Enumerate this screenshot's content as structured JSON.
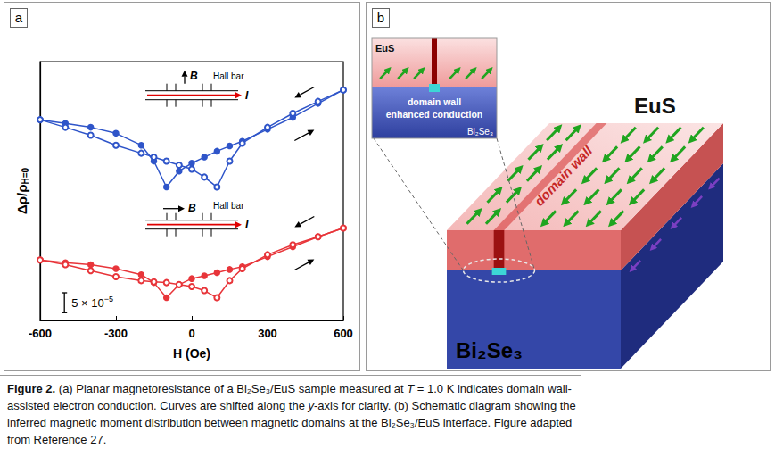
{
  "chart_data": {
    "type": "line",
    "panel_label": "a",
    "x_label": "H (Oe)",
    "y_label": {
      "main": "Δρ/ρ",
      "subscript": "H=0"
    },
    "x": [
      -600,
      -500,
      -400,
      -300,
      -200,
      -150,
      -100,
      -50,
      0,
      50,
      100,
      150,
      200,
      300,
      400,
      500,
      600
    ],
    "series": [
      {
        "color": "#2f55c9",
        "marker": "circle",
        "values": [
          0.000504,
          0.000495,
          0.000485,
          0.00047,
          0.00044,
          0.0004,
          0.000335,
          0.000375,
          0.000395,
          0.00041,
          0.000425,
          0.000438,
          0.00045,
          0.00048,
          0.00051,
          0.000545,
          0.000579
        ]
      },
      {
        "color": "#2f55c9",
        "marker": "emptyCircle",
        "values": [
          0.000504,
          0.000485,
          0.000465,
          0.00044,
          0.00042,
          0.00041,
          0.0004,
          0.00039,
          0.00038,
          0.00036,
          0.000335,
          0.0004,
          0.000445,
          0.000485,
          0.00052,
          0.00055,
          0.000579
        ]
      },
      {
        "color": "#e8353a",
        "marker": "circle",
        "values": [
          0.000152,
          0.000145,
          0.00014,
          0.00013,
          0.000115,
          9.5e-05,
          5.7e-05,
          9e-05,
          0.000105,
          0.000112,
          0.00012,
          0.000128,
          0.000135,
          0.00016,
          0.000185,
          0.00021,
          0.000232
        ]
      },
      {
        "color": "#e8353a",
        "marker": "emptyCircle",
        "values": [
          0.000152,
          0.00014,
          0.000125,
          0.00011,
          0.0001,
          9.7e-05,
          9.5e-05,
          9e-05,
          8.5e-05,
          7.5e-05,
          5.7e-05,
          0.0001,
          0.00013,
          0.000165,
          0.00019,
          0.00021,
          0.000232
        ]
      }
    ],
    "xlim": [
      -600,
      600
    ],
    "xticks": [
      -600,
      -300,
      0,
      300,
      600
    ],
    "ylim": [
      0,
      0.00065
    ],
    "tick_labels": "x",
    "grid": false,
    "scale_bar": {
      "value": 5e-05,
      "label": "5 × 10",
      "exponent": "−5"
    },
    "insets": [
      {
        "field": "B",
        "current": "I",
        "device": "Hall bar"
      },
      {
        "field": "B",
        "current": "I",
        "device": "Hall bar"
      }
    ]
  },
  "diagram": {
    "panel_label": "b",
    "top_layer": "EuS",
    "bottom_layer": "Bi₂Se₃",
    "wall_label": "domain wall",
    "inset": {
      "top_layer": "EuS",
      "annotation": [
        "domain wall",
        "enhanced conduction"
      ],
      "bottom_layer": "Bi₂Se₃"
    }
  },
  "caption": {
    "parts": [
      {
        "text": "Figure 2.",
        "style": "bold"
      },
      {
        "text": " (a) Planar magnetoresistance of a Bi₂Se₃/EuS sample measured at ",
        "style": "normal"
      },
      {
        "text": "T",
        "style": "italic"
      },
      {
        "text": " = 1.0 K indicates domain wall-assisted electron conduction. Curves are shifted along the ",
        "style": "normal"
      },
      {
        "text": "y",
        "style": "italic"
      },
      {
        "text": "-axis for clarity. (b) Schematic diagram showing the inferred magnetic moment distribution between magnetic domains at the Bi₂Se₃/EuS interface. Figure adapted from Reference 27.",
        "style": "normal"
      }
    ]
  }
}
